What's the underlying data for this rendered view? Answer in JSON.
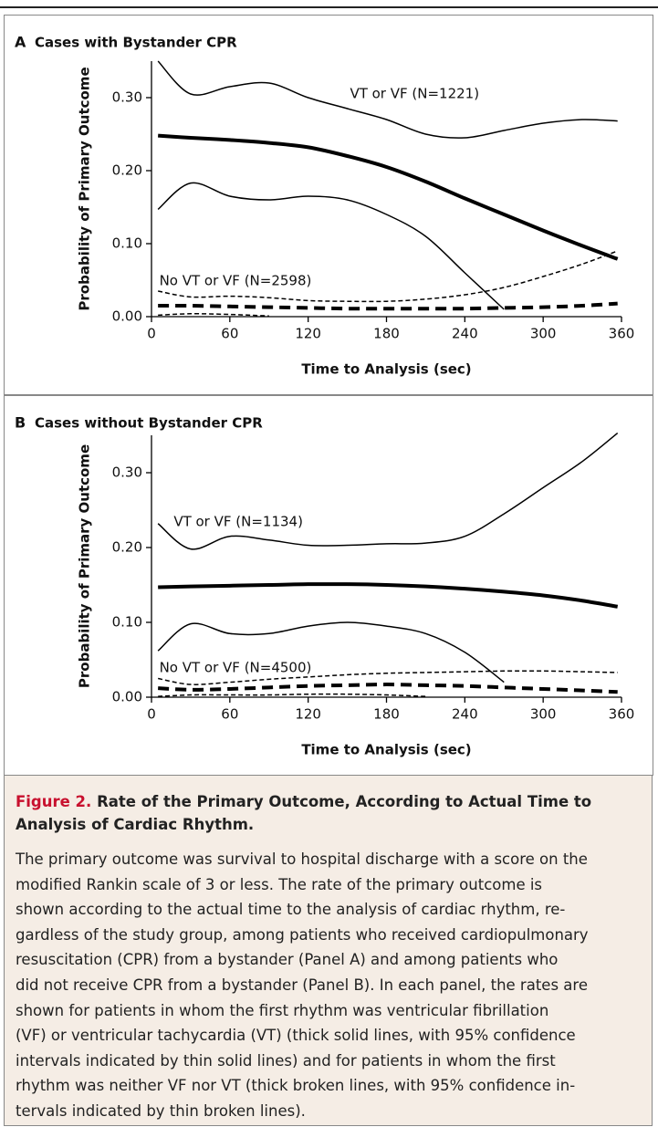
{
  "chart_data": [
    {
      "type": "line",
      "panel_label": "A",
      "title": "Cases with Bystander CPR",
      "xlabel": "Time to Analysis (sec)",
      "ylabel": "Probability of Primary Outcome",
      "xlim": [
        0,
        360
      ],
      "ylim": [
        0,
        0.35
      ],
      "xticks": [
        0,
        60,
        120,
        180,
        240,
        300,
        360
      ],
      "yticks": [
        {
          "value": 0,
          "label": "0.00"
        },
        {
          "value": 0.1,
          "label": "0.10"
        },
        {
          "value": 0.2,
          "label": "0.20"
        },
        {
          "value": 0.3,
          "label": "0.30"
        }
      ],
      "annotations": [
        "VT or VF (N=1221)",
        "No VT or VF (N=2598)"
      ],
      "x": [
        5,
        30,
        60,
        90,
        120,
        150,
        180,
        210,
        240,
        270,
        300,
        330,
        357
      ],
      "series": [
        {
          "color": "#000000",
          "line_style": "solid",
          "weight": "thick",
          "values": [
            0.248,
            0.245,
            0.242,
            0.238,
            0.232,
            0.22,
            0.205,
            0.185,
            0.162,
            0.14,
            0.118,
            0.097,
            0.079
          ]
        },
        {
          "color": "#000000",
          "line_style": "solid",
          "weight": "thin",
          "values": [
            0.35,
            0.305,
            0.315,
            0.32,
            0.3,
            0.285,
            0.27,
            0.25,
            0.245,
            0.255,
            0.265,
            0.27,
            0.268
          ]
        },
        {
          "color": "#000000",
          "line_style": "solid",
          "weight": "thin",
          "values": [
            0.147,
            0.183,
            0.165,
            0.16,
            0.165,
            0.16,
            0.14,
            0.11,
            0.06,
            0.01,
            null,
            null,
            null
          ]
        },
        {
          "color": "#000000",
          "line_style": "dashed",
          "weight": "thick",
          "values": [
            0.015,
            0.015,
            0.014,
            0.013,
            0.012,
            0.011,
            0.011,
            0.011,
            0.011,
            0.012,
            0.013,
            0.015,
            0.018
          ]
        },
        {
          "color": "#000000",
          "line_style": "dashed",
          "weight": "thin",
          "values": [
            0.035,
            0.027,
            0.028,
            0.026,
            0.022,
            0.021,
            0.021,
            0.024,
            0.03,
            0.04,
            0.055,
            0.072,
            0.09
          ]
        },
        {
          "color": "#000000",
          "line_style": "dashed",
          "weight": "thin",
          "values": [
            0.002,
            0.004,
            0.003,
            0.001,
            null,
            null,
            null,
            null,
            null,
            null,
            null,
            null,
            null
          ]
        }
      ]
    },
    {
      "type": "line",
      "panel_label": "B",
      "title": "Cases without Bystander CPR",
      "xlabel": "Time to Analysis (sec)",
      "ylabel": "Probability of Primary Outcome",
      "xlim": [
        0,
        360
      ],
      "ylim": [
        0,
        0.35
      ],
      "xticks": [
        0,
        60,
        120,
        180,
        240,
        300,
        360
      ],
      "yticks": [
        {
          "value": 0,
          "label": "0.00"
        },
        {
          "value": 0.1,
          "label": "0.10"
        },
        {
          "value": 0.2,
          "label": "0.20"
        },
        {
          "value": 0.3,
          "label": "0.30"
        }
      ],
      "annotations": [
        "VT or VF (N=1134)",
        "No VT or VF (N=4500)"
      ],
      "x": [
        5,
        30,
        60,
        90,
        120,
        150,
        180,
        210,
        240,
        270,
        300,
        330,
        357
      ],
      "series": [
        {
          "color": "#000000",
          "line_style": "solid",
          "weight": "thick",
          "values": [
            0.147,
            0.148,
            0.149,
            0.15,
            0.151,
            0.151,
            0.15,
            0.148,
            0.145,
            0.141,
            0.136,
            0.129,
            0.121
          ]
        },
        {
          "color": "#000000",
          "line_style": "solid",
          "weight": "thin",
          "values": [
            0.232,
            0.198,
            0.215,
            0.21,
            0.203,
            0.203,
            0.205,
            0.206,
            0.215,
            0.245,
            0.28,
            0.315,
            0.353
          ]
        },
        {
          "color": "#000000",
          "line_style": "solid",
          "weight": "thin",
          "values": [
            0.062,
            0.098,
            0.085,
            0.085,
            0.095,
            0.1,
            0.095,
            0.085,
            0.06,
            0.02,
            null,
            null,
            null
          ]
        },
        {
          "color": "#000000",
          "line_style": "dashed",
          "weight": "thick",
          "values": [
            0.012,
            0.01,
            0.011,
            0.013,
            0.015,
            0.016,
            0.017,
            0.016,
            0.015,
            0.013,
            0.011,
            0.009,
            0.007
          ]
        },
        {
          "color": "#000000",
          "line_style": "dashed",
          "weight": "thin",
          "values": [
            0.025,
            0.017,
            0.02,
            0.024,
            0.027,
            0.03,
            0.032,
            0.033,
            0.034,
            0.035,
            0.035,
            0.034,
            0.033
          ]
        },
        {
          "color": "#000000",
          "line_style": "dashed",
          "weight": "thin",
          "values": [
            0.001,
            0.003,
            0.003,
            0.003,
            0.004,
            0.004,
            0.003,
            0.001,
            null,
            null,
            null,
            null,
            null
          ]
        }
      ]
    }
  ],
  "caption": {
    "label": "Figure 2.",
    "title": "Rate of the Primary Outcome, According to Actual Time to Analysis of Cardiac Rhythm.",
    "lines": [
      "The primary outcome was survival to hospital discharge with a score on the",
      "modified Rankin scale of 3 or less. The rate of the primary outcome is",
      "shown according to the actual time to the analysis of cardiac rhythm, re-",
      "gardless of the study group, among patients who received cardiopulmonary",
      "resuscitation (CPR) from a bystander (Panel A) and among patients who",
      "did not receive CPR from a bystander (Panel B). In each panel, the rates are",
      "shown for patients in whom the first rhythm was ventricular fibrillation",
      "(VF) or ventricular tachycardia (VT) (thick solid lines, with 95% confidence",
      "intervals indicated by thin solid lines) and for patients in whom the first",
      "rhythm was neither VF nor VT (thick broken lines, with 95% confidence in-",
      "tervals indicated by thin broken lines)."
    ]
  }
}
